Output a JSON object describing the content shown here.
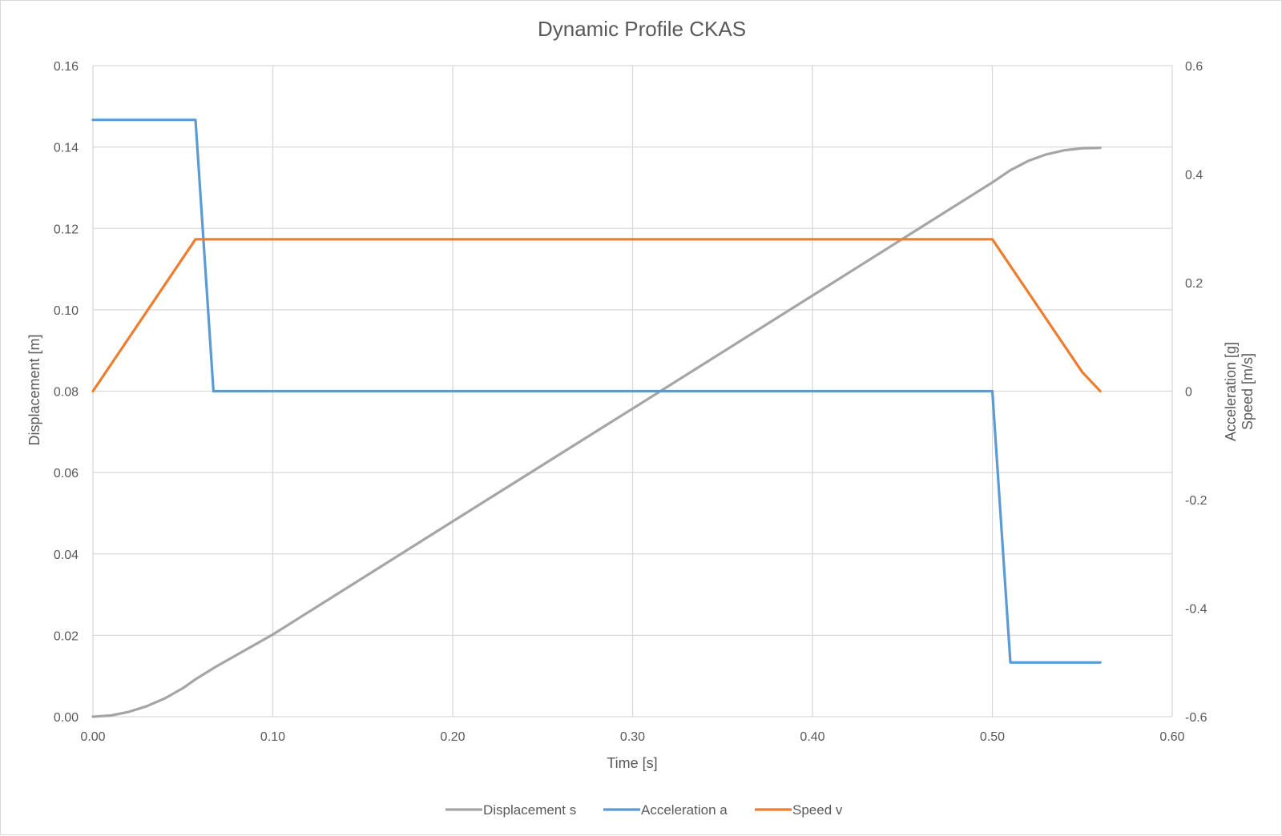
{
  "chart_data": {
    "type": "line",
    "title": "Dynamic Profile CKAS",
    "xlabel": "Time [s]",
    "ylabel_left": "Displacement [m]",
    "ylabel_right": [
      "Acceleration [g]",
      "Speed [m/s]"
    ],
    "xlim": [
      0,
      0.6
    ],
    "x_ticks": [
      "0.00",
      "0.10",
      "0.20",
      "0.30",
      "0.40",
      "0.50",
      "0.60"
    ],
    "ylim_left": [
      0,
      0.16
    ],
    "y_ticks_left": [
      "0.00",
      "0.02",
      "0.04",
      "0.06",
      "0.08",
      "0.10",
      "0.12",
      "0.14",
      "0.16"
    ],
    "ylim_right": [
      -0.6,
      0.6
    ],
    "y_ticks_right": [
      "-0.6",
      "-0.4",
      "-0.2",
      "0",
      "0.2",
      "0.4",
      "0.6"
    ],
    "grid": true,
    "legend_position": "bottom",
    "series": [
      {
        "name": "Displacement s",
        "axis": "left",
        "color": "#a5a5a5",
        "x": [
          0,
          0.01,
          0.02,
          0.03,
          0.04,
          0.05,
          0.057,
          0.068,
          0.1,
          0.2,
          0.3,
          0.4,
          0.5,
          0.51,
          0.52,
          0.53,
          0.54,
          0.55,
          0.56
        ],
        "y": [
          0,
          0.0003,
          0.0012,
          0.0026,
          0.0045,
          0.007,
          0.0092,
          0.0122,
          0.0202,
          0.048,
          0.0757,
          0.1035,
          0.1313,
          0.1343,
          0.1366,
          0.1382,
          0.1392,
          0.1397,
          0.1398
        ]
      },
      {
        "name": "Acceleration a",
        "axis": "right",
        "color": "#5b9bd5",
        "x": [
          0,
          0.057,
          0.067,
          0.5,
          0.51,
          0.56
        ],
        "y": [
          0.5,
          0.5,
          0,
          0,
          -0.5,
          -0.5
        ]
      },
      {
        "name": "Speed v",
        "axis": "right",
        "color": "#ed7d31",
        "x": [
          0,
          0.057,
          0.5,
          0.55,
          0.56
        ],
        "y": [
          0,
          0.28,
          0.28,
          0.035,
          0
        ]
      }
    ]
  }
}
